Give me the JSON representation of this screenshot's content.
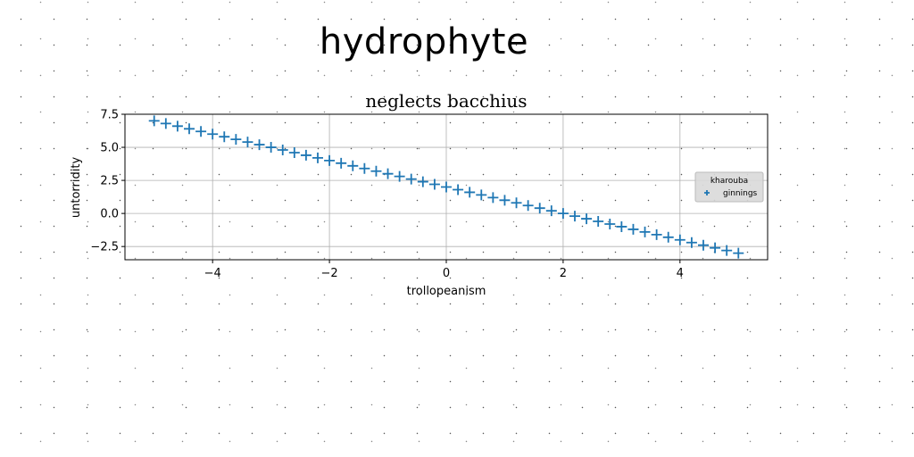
{
  "suptitle": "hydrophyte",
  "chart_data": {
    "type": "scatter",
    "title": "neglects bacchius",
    "xlabel": "trollopeanism",
    "ylabel": "untorridity",
    "xlim": [
      -5.5,
      5.5
    ],
    "ylim": [
      -3.5,
      7.5
    ],
    "xticks": [
      -4,
      -2,
      0,
      2,
      4
    ],
    "xtick_labels": [
      "−4",
      "−2",
      "0",
      "2",
      "4"
    ],
    "yticks": [
      -2.5,
      0.0,
      2.5,
      5.0,
      7.5
    ],
    "ytick_labels": [
      "−2.5",
      "0.0",
      "2.5",
      "5.0",
      "7.5"
    ],
    "grid": true,
    "legend": {
      "title": "kharouba",
      "placement": "center-right"
    },
    "marker": "plus",
    "series": [
      {
        "name": "ginnings",
        "color": "#1f77b4",
        "x": [
          -5.0,
          -4.8,
          -4.6,
          -4.4,
          -4.2,
          -4.0,
          -3.8,
          -3.6,
          -3.4,
          -3.2,
          -3.0,
          -2.8,
          -2.6,
          -2.4,
          -2.2,
          -2.0,
          -1.8,
          -1.6,
          -1.4,
          -1.2,
          -1.0,
          -0.8,
          -0.6,
          -0.4,
          -0.2,
          0.0,
          0.2,
          0.4,
          0.6,
          0.8,
          1.0,
          1.2,
          1.4,
          1.6,
          1.8,
          2.0,
          2.2,
          2.4,
          2.6,
          2.8,
          3.0,
          3.2,
          3.4,
          3.6,
          3.8,
          4.0,
          4.2,
          4.4,
          4.6,
          4.8,
          5.0
        ],
        "y": [
          7.0,
          6.8,
          6.6,
          6.4,
          6.2,
          6.0,
          5.8,
          5.6,
          5.4,
          5.2,
          5.0,
          4.8,
          4.6,
          4.4,
          4.2,
          4.0,
          3.8,
          3.6,
          3.4,
          3.2,
          3.0,
          2.8,
          2.6,
          2.4,
          2.2,
          2.0,
          1.8,
          1.6,
          1.4,
          1.2,
          1.0,
          0.8,
          0.6,
          0.4,
          0.2,
          0.0,
          -0.2,
          -0.4,
          -0.6,
          -0.8,
          -1.0,
          -1.2,
          -1.4,
          -1.6,
          -1.8,
          -2.0,
          -2.2,
          -2.4,
          -2.6,
          -2.8,
          -3.0
        ]
      }
    ]
  }
}
